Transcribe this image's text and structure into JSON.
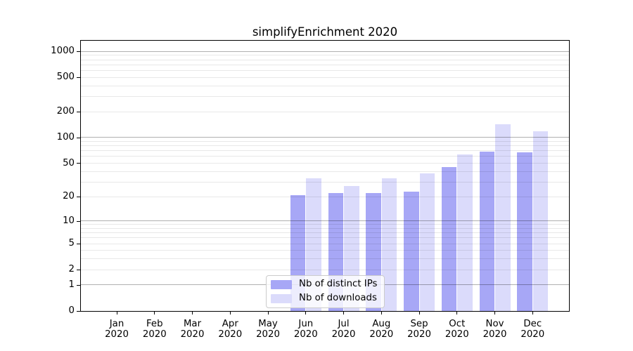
{
  "title": "simplifyEnrichment 2020",
  "legend": {
    "items": [
      {
        "label": "Nb of distinct IPs",
        "color": "#a7a7f6"
      },
      {
        "label": "Nb of downloads",
        "color": "#dbdbfb"
      }
    ]
  },
  "y_axis": {
    "tick_labels": [
      "0",
      "1",
      "2",
      "5",
      "10",
      "20",
      "50",
      "100",
      "200",
      "500",
      "1000"
    ]
  },
  "x_axis": {
    "months": [
      "Jan",
      "Feb",
      "Mar",
      "Apr",
      "May",
      "Jun",
      "Jul",
      "Aug",
      "Sep",
      "Oct",
      "Nov",
      "Dec"
    ],
    "year": "2020"
  },
  "colors": {
    "distinct_ips_bar": "#a7a7f6",
    "downloads_bar": "#dbdbfb",
    "major_gridline": "rgba(0,0,0,0.31)",
    "minor_gridline": "rgba(0,0,0,0.09)",
    "axis": "#000000"
  },
  "chart_data": {
    "type": "bar",
    "title": "simplifyEnrichment 2020",
    "categories": [
      "Jan 2020",
      "Feb 2020",
      "Mar 2020",
      "Apr 2020",
      "May 2020",
      "Jun 2020",
      "Jul 2020",
      "Aug 2020",
      "Sep 2020",
      "Oct 2020",
      "Nov 2020",
      "Dec 2020"
    ],
    "series": [
      {
        "name": "Nb of distinct IPs",
        "color": "#a7a7f6",
        "values": [
          0,
          0,
          0,
          0,
          0,
          21,
          22,
          22,
          23,
          45,
          68,
          67
        ]
      },
      {
        "name": "Nb of downloads",
        "color": "#dbdbfb",
        "values": [
          0,
          0,
          0,
          0,
          0,
          33,
          27,
          33,
          38,
          63,
          143,
          118
        ]
      }
    ],
    "xlabel": "",
    "ylabel": "",
    "yscale": "log1p (symlog-like: position proportional to log10(1+value))",
    "yticks": [
      0,
      1,
      2,
      5,
      10,
      20,
      50,
      100,
      200,
      500,
      1000
    ],
    "ylim": [
      0,
      1300
    ],
    "grid": "minor gridlines at 2-9 per decade, darker major gridlines at 1,10,100,1000; grid drawn above bars",
    "legend_position": "lower center"
  }
}
